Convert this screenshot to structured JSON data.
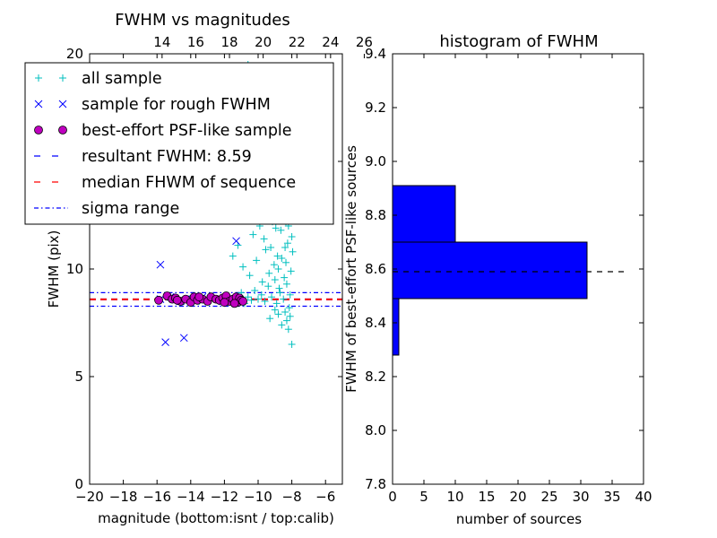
{
  "chart_data": [
    {
      "type": "scatter",
      "title": "FWHM vs magnitudes",
      "xlabel": "magnitude (bottom:isnt / top:calib)",
      "ylabel": "FWHM (pix)",
      "xlim": [
        -20,
        -5
      ],
      "ylim": [
        0,
        20
      ],
      "x_ticks": [
        -20,
        -18,
        -16,
        -14,
        -12,
        -10,
        -8,
        -6
      ],
      "x_tick_labels": [
        "−20",
        "−18",
        "−16",
        "−14",
        "−12",
        "−10",
        "−8",
        "−6"
      ],
      "y_ticks": [
        0,
        5,
        10,
        15,
        20
      ],
      "y_tick_labels": [
        "0",
        "5",
        "10",
        "15",
        "20"
      ],
      "top_x_ticks": [
        14,
        16,
        18,
        20,
        22,
        24,
        26
      ],
      "top_x_tick_labels": [
        "14",
        "16",
        "18",
        "20",
        "22",
        "24",
        "26"
      ],
      "top_axis_offset": 29.7,
      "legend_location": "upper-left",
      "series": [
        {
          "name": "all sample",
          "marker": "+",
          "color": "#00bfbf",
          "points": [
            [
              -15.0,
              8.6
            ],
            [
              -13.5,
              8.5
            ],
            [
              -12.6,
              8.6
            ],
            [
              -12.1,
              8.55
            ],
            [
              -11.8,
              8.7
            ],
            [
              -11.4,
              8.6
            ],
            [
              -11.0,
              8.9
            ],
            [
              -10.8,
              8.4
            ],
            [
              -10.6,
              8.7
            ],
            [
              -10.4,
              8.55
            ],
            [
              -10.2,
              9.0
            ],
            [
              -10.0,
              8.6
            ],
            [
              -9.8,
              8.8
            ],
            [
              -9.6,
              8.5
            ],
            [
              -9.4,
              9.2
            ],
            [
              -9.2,
              8.7
            ],
            [
              -9.0,
              9.5
            ],
            [
              -8.9,
              8.4
            ],
            [
              -8.8,
              10.0
            ],
            [
              -8.7,
              8.9
            ],
            [
              -8.6,
              10.5
            ],
            [
              -8.5,
              8.6
            ],
            [
              -8.4,
              11.0
            ],
            [
              -8.3,
              9.3
            ],
            [
              -8.2,
              12.0
            ],
            [
              -8.1,
              8.8
            ],
            [
              -8.0,
              11.5
            ],
            [
              -8.05,
              9.9
            ],
            [
              -7.95,
              10.8
            ],
            [
              -8.15,
              12.5
            ],
            [
              -8.25,
              11.2
            ],
            [
              -8.35,
              10.3
            ],
            [
              -8.45,
              9.6
            ],
            [
              -8.55,
              12.8
            ],
            [
              -8.65,
              11.8
            ],
            [
              -8.75,
              9.1
            ],
            [
              -8.85,
              10.6
            ],
            [
              -8.95,
              11.9
            ],
            [
              -9.05,
              10.2
            ],
            [
              -9.15,
              12.2
            ],
            [
              -9.25,
              11.0
            ],
            [
              -9.35,
              9.8
            ],
            [
              -9.45,
              12.6
            ],
            [
              -9.55,
              10.9
            ],
            [
              -9.65,
              11.4
            ],
            [
              -9.75,
              9.4
            ],
            [
              -9.9,
              12.0
            ],
            [
              -10.1,
              10.4
            ],
            [
              -10.3,
              11.6
            ],
            [
              -10.5,
              9.7
            ],
            [
              -10.7,
              12.4
            ],
            [
              -10.9,
              10.1
            ],
            [
              -11.2,
              11.1
            ],
            [
              -11.5,
              10.6
            ],
            [
              -8.1,
              7.8
            ],
            [
              -8.2,
              7.2
            ],
            [
              -8.0,
              6.5
            ],
            [
              -8.3,
              7.6
            ],
            [
              -8.4,
              8.0
            ],
            [
              -8.6,
              7.4
            ],
            [
              -8.8,
              7.9
            ],
            [
              -9.0,
              8.1
            ],
            [
              -9.3,
              7.7
            ],
            [
              -8.15,
              8.2
            ],
            [
              -8.5,
              12.4
            ],
            [
              -8.25,
              12.9
            ],
            [
              -8.35,
              12.2
            ],
            [
              -8.7,
              12.7
            ],
            [
              -9.8,
              13.0
            ],
            [
              -10.6,
              12.9
            ],
            [
              -9.2,
              15.0
            ],
            [
              -8.9,
              16.0
            ],
            [
              -9.6,
              14.2
            ],
            [
              -10.2,
              14.6
            ],
            [
              -10.8,
              15.4
            ],
            [
              -9.0,
              17.5
            ],
            [
              -10.6,
              19.5
            ],
            [
              -8.8,
              19.2
            ],
            [
              -9.9,
              18.3
            ],
            [
              -10.3,
              16.8
            ],
            [
              -8.6,
              18.9
            ],
            [
              -9.4,
              17.0
            ]
          ]
        },
        {
          "name": "sample for rough FWHM",
          "marker": "x",
          "color": "#0000ff",
          "points": [
            [
              -15.8,
              10.2
            ],
            [
              -15.5,
              6.6
            ],
            [
              -14.4,
              6.8
            ],
            [
              -11.3,
              11.3
            ],
            [
              -15.8,
              8.6
            ],
            [
              -15.2,
              8.7
            ],
            [
              -14.6,
              8.5
            ],
            [
              -13.9,
              8.6
            ],
            [
              -13.3,
              8.7
            ],
            [
              -12.7,
              8.6
            ],
            [
              -12.1,
              8.5
            ],
            [
              -11.6,
              8.6
            ]
          ]
        },
        {
          "name": "best-effort PSF-like sample",
          "marker": "o",
          "color": "#bf00bf",
          "points": [
            [
              -15.9,
              8.55
            ],
            [
              -15.4,
              8.75
            ],
            [
              -15.1,
              8.6
            ],
            [
              -14.9,
              8.65
            ],
            [
              -14.6,
              8.5
            ],
            [
              -14.3,
              8.6
            ],
            [
              -14.0,
              8.45
            ],
            [
              -13.8,
              8.7
            ],
            [
              -13.6,
              8.55
            ],
            [
              -13.3,
              8.6
            ],
            [
              -13.0,
              8.5
            ],
            [
              -12.8,
              8.7
            ],
            [
              -12.5,
              8.6
            ],
            [
              -12.3,
              8.55
            ],
            [
              -12.1,
              8.65
            ],
            [
              -11.9,
              8.75
            ],
            [
              -11.7,
              8.5
            ],
            [
              -11.5,
              8.6
            ],
            [
              -11.3,
              8.7
            ],
            [
              -11.2,
              8.45
            ],
            [
              -11.1,
              8.65
            ],
            [
              -11.0,
              8.55
            ],
            [
              -10.9,
              8.5
            ],
            [
              -11.4,
              8.4
            ],
            [
              -12.0,
              8.45
            ],
            [
              -13.5,
              8.7
            ],
            [
              -14.8,
              8.55
            ]
          ]
        },
        {
          "name": "resultant FWHM: 8.59",
          "type": "hline",
          "y": 8.59,
          "color": "#0000ff",
          "style": "dashed"
        },
        {
          "name": "median FHWM of sequence",
          "type": "hline",
          "y": 8.59,
          "color": "#ff0000",
          "style": "dashed"
        },
        {
          "name": "sigma range",
          "type": "hline",
          "y": [
            8.27,
            8.9
          ],
          "color": "#0000ff",
          "style": "dashdot"
        }
      ]
    },
    {
      "type": "bar",
      "orientation": "horizontal",
      "title": "histogram of FWHM",
      "xlabel": "number of sources",
      "ylabel": "FWHM of best-effort PSF-like sources",
      "xlim": [
        0,
        40
      ],
      "ylim": [
        7.8,
        9.4
      ],
      "x_ticks": [
        0,
        5,
        10,
        15,
        20,
        25,
        30,
        35,
        40
      ],
      "x_tick_labels": [
        "0",
        "5",
        "10",
        "15",
        "20",
        "25",
        "30",
        "35",
        "40"
      ],
      "y_ticks": [
        7.8,
        8.0,
        8.2,
        8.4,
        8.6,
        8.8,
        9.0,
        9.2,
        9.4
      ],
      "y_tick_labels": [
        "7.8",
        "8.0",
        "8.2",
        "8.4",
        "8.6",
        "8.8",
        "9.0",
        "9.2",
        "9.4"
      ],
      "bars": [
        {
          "bin": [
            8.28,
            8.49
          ],
          "count": 1
        },
        {
          "bin": [
            8.49,
            8.7
          ],
          "count": 31
        },
        {
          "bin": [
            8.7,
            8.91
          ],
          "count": 10
        }
      ],
      "bar_color": "#0000ff",
      "reference_line": {
        "y": 8.59,
        "x_range": [
          0,
          36.9
        ],
        "color": "#000000",
        "style": "dashed"
      }
    }
  ]
}
